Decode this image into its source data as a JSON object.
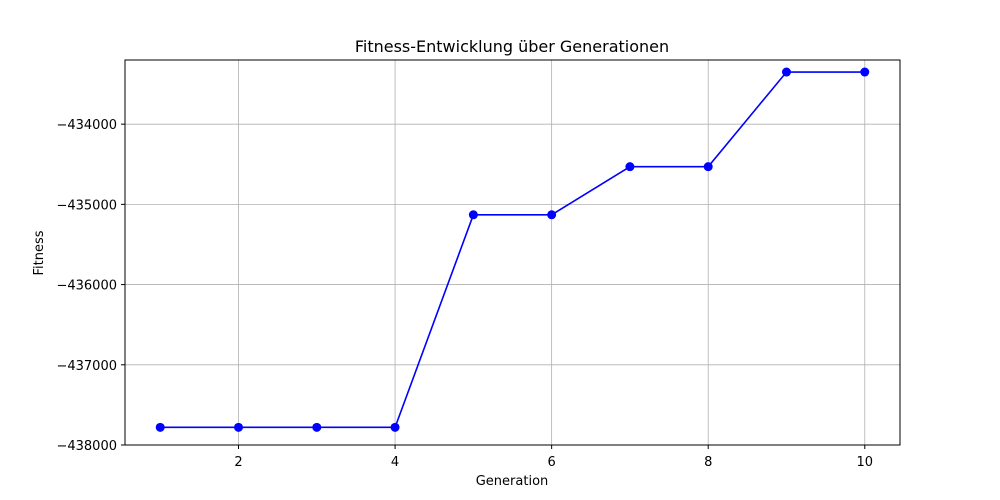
{
  "chart_data": {
    "type": "line",
    "title": "Fitness-Entwicklung über Generationen",
    "xlabel": "Generation",
    "ylabel": "Fitness",
    "xlim": [
      0.55,
      10.45
    ],
    "ylim": [
      -438000,
      -433200
    ],
    "xticks": [
      2,
      4,
      6,
      8,
      10
    ],
    "xtick_labels": [
      "2",
      "4",
      "6",
      "8",
      "10"
    ],
    "yticks": [
      -438000,
      -437000,
      -436000,
      -435000,
      -434000
    ],
    "ytick_labels": [
      "−438000",
      "−437000",
      "−436000",
      "−435000",
      "−434000"
    ],
    "grid": true,
    "legend": "none",
    "series": [
      {
        "color": "#0000ff",
        "marker": "circle",
        "x": [
          1,
          2,
          3,
          4,
          5,
          6,
          7,
          8,
          9,
          10
        ],
        "y": [
          -437780,
          -437780,
          -437780,
          -437780,
          -435130,
          -435130,
          -434530,
          -434530,
          -433350,
          -433350
        ]
      }
    ]
  }
}
